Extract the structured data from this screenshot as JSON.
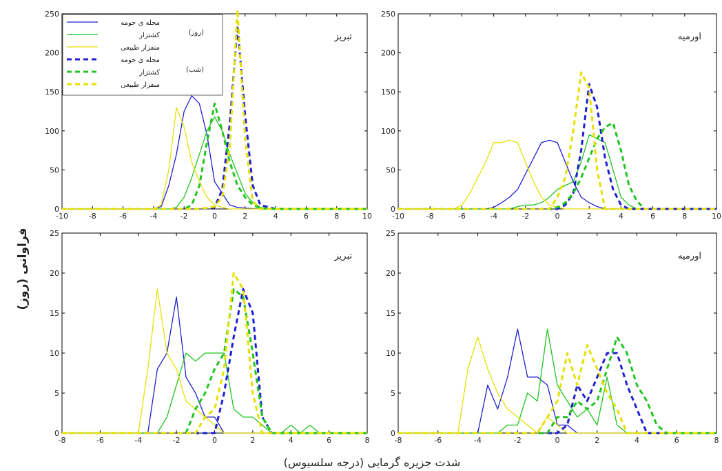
{
  "figure": {
    "ylabel": "فراوانی (روز)",
    "xlabel": "شدت جزیره گرمایی (درجه سلسیوس)"
  },
  "legend": {
    "group_day": "(روز)",
    "group_night": "(شب)",
    "entries": [
      "محله ی حومه",
      "کشتزار",
      "منفزار طبیعی",
      "محله ی حومه",
      "کشتزار",
      "منفزار طبیعی"
    ]
  },
  "colors": {
    "suburb": "#1f1fd2",
    "farm": "#1fc41f",
    "natural": "#e6e000"
  },
  "chart_data": [
    {
      "type": "line",
      "title": "تبریز",
      "xlim": [
        -10,
        10
      ],
      "ylim": [
        0,
        250
      ],
      "xticks": [
        -10,
        -8,
        -6,
        -4,
        -2,
        0,
        2,
        4,
        6,
        8,
        10
      ],
      "yticks": [
        0,
        50,
        100,
        150,
        200,
        250
      ],
      "series": [
        {
          "name": "محله ی حومه (روز)",
          "style": "solid",
          "color": "suburb",
          "x": [
            -10,
            -6,
            -4,
            -3.5,
            -3,
            -2.5,
            -2,
            -1.5,
            -1,
            -0.5,
            0,
            0.5,
            1,
            1.5,
            2,
            3,
            4,
            10
          ],
          "y": [
            0,
            0,
            0,
            3,
            30,
            70,
            125,
            145,
            135,
            95,
            35,
            20,
            5,
            2,
            1,
            0,
            0,
            0
          ]
        },
        {
          "name": "کشتزار (روز)",
          "style": "solid",
          "color": "farm",
          "x": [
            -10,
            -3,
            -2.5,
            -2,
            -1.5,
            -1,
            -0.5,
            0,
            0.5,
            1,
            1.5,
            2,
            2.5,
            3,
            3.5,
            10
          ],
          "y": [
            0,
            0,
            2,
            15,
            40,
            70,
            100,
            118,
            100,
            70,
            45,
            20,
            8,
            2,
            0,
            0
          ]
        },
        {
          "name": "منفزار طبیعی (روز)",
          "style": "solid",
          "color": "natural",
          "x": [
            -10,
            -4,
            -3.5,
            -3,
            -2.5,
            -2,
            -1.5,
            -1,
            -0.5,
            0,
            0.5,
            1,
            10
          ],
          "y": [
            0,
            0,
            5,
            50,
            130,
            105,
            60,
            35,
            15,
            5,
            2,
            0,
            0
          ]
        },
        {
          "name": "محله ی حومه (شب)",
          "style": "dashed",
          "color": "suburb",
          "x": [
            -10,
            -2,
            -1,
            0,
            0.5,
            1,
            1.5,
            2,
            2.5,
            3,
            4,
            10
          ],
          "y": [
            0,
            0,
            0,
            2,
            25,
            110,
            235,
            120,
            30,
            5,
            0,
            0
          ]
        },
        {
          "name": "کشتزار (شب)",
          "style": "dashed",
          "color": "farm",
          "x": [
            -10,
            -2,
            -1.5,
            -1,
            -0.5,
            0,
            0.5,
            1,
            1.5,
            2,
            2.5,
            3,
            4,
            10
          ],
          "y": [
            0,
            0,
            5,
            30,
            85,
            135,
            100,
            60,
            30,
            15,
            5,
            1,
            0,
            0
          ]
        },
        {
          "name": "منفزار طبیعی (شب)",
          "style": "dashed",
          "color": "natural",
          "x": [
            -10,
            -1,
            0,
            0.5,
            1,
            1.5,
            2,
            2.5,
            3,
            10
          ],
          "y": [
            0,
            0,
            3,
            15,
            80,
            255,
            90,
            10,
            0,
            0
          ]
        }
      ]
    },
    {
      "type": "line",
      "title": "اورمیه",
      "xlim": [
        -10,
        10
      ],
      "ylim": [
        0,
        250
      ],
      "xticks": [
        -10,
        -8,
        -6,
        -4,
        -2,
        0,
        2,
        4,
        6,
        8,
        10
      ],
      "yticks": [
        0,
        50,
        100,
        150,
        200,
        250
      ],
      "series": [
        {
          "name": "محله ی حومه (روز)",
          "style": "solid",
          "color": "suburb",
          "x": [
            -10,
            -4.5,
            -4,
            -3.5,
            -3,
            -2.5,
            -2,
            -1.5,
            -1,
            -0.5,
            0,
            0.5,
            1,
            1.5,
            2,
            2.5,
            3,
            10
          ],
          "y": [
            0,
            0,
            2,
            8,
            15,
            25,
            45,
            65,
            85,
            88,
            85,
            60,
            35,
            15,
            8,
            3,
            0,
            0
          ]
        },
        {
          "name": "کشتزار (روز)",
          "style": "solid",
          "color": "farm",
          "x": [
            -10,
            -3,
            -2.5,
            -2,
            -1.5,
            -1,
            -0.5,
            0,
            0.5,
            1,
            1.5,
            2,
            2.5,
            3,
            3.5,
            4,
            4.5,
            5,
            10
          ],
          "y": [
            0,
            0,
            3,
            5,
            5,
            8,
            15,
            25,
            30,
            35,
            60,
            95,
            90,
            85,
            50,
            15,
            5,
            0,
            0
          ]
        },
        {
          "name": "منفزار طبیعی (روز)",
          "style": "solid",
          "color": "natural",
          "x": [
            -10,
            -6.5,
            -6,
            -5.5,
            -5,
            -4.5,
            -4,
            -3.5,
            -3,
            -2.5,
            -2,
            -1.5,
            -1,
            -0.5,
            0,
            0.5,
            1,
            10
          ],
          "y": [
            0,
            0,
            5,
            20,
            40,
            60,
            85,
            85,
            88,
            85,
            60,
            35,
            15,
            5,
            2,
            0,
            0,
            0
          ]
        },
        {
          "name": "محله ی حومه (شب)",
          "style": "dashed",
          "color": "suburb",
          "x": [
            -10,
            0,
            0.5,
            1,
            1.5,
            2,
            2.5,
            3,
            3.5,
            4,
            4.5,
            10
          ],
          "y": [
            0,
            0,
            5,
            20,
            75,
            160,
            130,
            65,
            25,
            5,
            0,
            0
          ]
        },
        {
          "name": "کشتزار (شب)",
          "style": "dashed",
          "color": "farm",
          "x": [
            -10,
            -0.5,
            0,
            0.5,
            1,
            1.5,
            2,
            2.5,
            3,
            3.5,
            4,
            4.5,
            5,
            5.5,
            10
          ],
          "y": [
            0,
            0,
            2,
            8,
            20,
            40,
            65,
            90,
            105,
            110,
            75,
            30,
            10,
            0,
            0
          ]
        },
        {
          "name": "منفزار طبیعی (شب)",
          "style": "dashed",
          "color": "natural",
          "x": [
            -10,
            -0.5,
            0,
            0.5,
            1,
            1.5,
            2,
            2.5,
            3,
            10
          ],
          "y": [
            0,
            0,
            15,
            40,
            100,
            175,
            155,
            50,
            0,
            0
          ]
        }
      ]
    },
    {
      "type": "line",
      "title": "تبریز",
      "xlim": [
        -8,
        8
      ],
      "ylim": [
        0,
        25
      ],
      "xticks": [
        -8,
        -6,
        -4,
        -2,
        0,
        2,
        4,
        6,
        8
      ],
      "yticks": [
        0,
        5,
        10,
        15,
        20,
        25
      ],
      "series": [
        {
          "name": "محله ی حومه (روز)",
          "style": "solid",
          "color": "suburb",
          "x": [
            -8,
            -3.5,
            -3,
            -2.5,
            -2,
            -1.5,
            -1,
            -0.5,
            0,
            0.5,
            1,
            8
          ],
          "y": [
            0,
            0,
            8,
            10,
            17,
            7,
            5,
            2,
            2,
            0,
            0,
            0
          ]
        },
        {
          "name": "کشتزار (روز)",
          "style": "solid",
          "color": "farm",
          "x": [
            -8,
            -3,
            -2.5,
            -2,
            -1.5,
            -1,
            -0.5,
            0,
            0.5,
            1,
            1.5,
            2,
            2.5,
            3,
            3.5,
            4,
            4.5,
            5,
            5.5,
            6,
            8
          ],
          "y": [
            0,
            0,
            2,
            6,
            10,
            9,
            10,
            10,
            10,
            3,
            2,
            2,
            1,
            0,
            0,
            1,
            0,
            1,
            0,
            0,
            0
          ]
        },
        {
          "name": "منفزار طبیعی (روز)",
          "style": "solid",
          "color": "natural",
          "x": [
            -8,
            -4,
            -3.5,
            -3,
            -2.5,
            -2,
            -1.5,
            -1,
            -0.5,
            0,
            0.5,
            8
          ],
          "y": [
            0,
            0,
            8,
            18,
            10,
            8,
            4,
            3,
            2,
            1,
            0,
            0
          ]
        },
        {
          "name": "محله ی حومه (شب)",
          "style": "dashed",
          "color": "suburb",
          "x": [
            -8,
            0,
            0.5,
            1,
            1.5,
            2,
            2.5,
            3,
            8
          ],
          "y": [
            0,
            0,
            5,
            12,
            18,
            15,
            2,
            0,
            0
          ]
        },
        {
          "name": "کشتزار (شب)",
          "style": "dashed",
          "color": "farm",
          "x": [
            -8,
            -1.5,
            -1,
            -0.5,
            0,
            0.5,
            1,
            1.5,
            2,
            2.5,
            3,
            8
          ],
          "y": [
            0,
            0,
            3,
            5,
            8,
            10,
            18,
            17,
            10,
            2,
            0,
            0
          ]
        },
        {
          "name": "منفزار طبیعی (شب)",
          "style": "dashed",
          "color": "natural",
          "x": [
            -8,
            -1,
            -0.5,
            0,
            0.5,
            1,
            1.5,
            2,
            2.5,
            8
          ],
          "y": [
            0,
            0,
            2,
            3,
            8,
            20,
            18,
            5,
            0,
            0
          ]
        }
      ]
    },
    {
      "type": "line",
      "title": "اورمیه",
      "xlim": [
        -8,
        8
      ],
      "ylim": [
        0,
        25
      ],
      "xticks": [
        -8,
        -6,
        -4,
        -2,
        0,
        2,
        4,
        6,
        8
      ],
      "yticks": [
        0,
        5,
        10,
        15,
        20,
        25
      ],
      "series": [
        {
          "name": "محله ی حومه (روز)",
          "style": "solid",
          "color": "suburb",
          "x": [
            -8,
            -4,
            -3.5,
            -3,
            -2.5,
            -2,
            -1.5,
            -1,
            -0.5,
            0,
            0.5,
            1,
            8
          ],
          "y": [
            0,
            0,
            6,
            3,
            7,
            13,
            7,
            7,
            6,
            1,
            1,
            0,
            0
          ]
        },
        {
          "name": "کشتزار (روز)",
          "style": "solid",
          "color": "farm",
          "x": [
            -8,
            -3,
            -2.5,
            -2,
            -1.5,
            -1,
            -0.5,
            0,
            0.5,
            1,
            1.5,
            2,
            2.5,
            3,
            3.5,
            4,
            8
          ],
          "y": [
            0,
            0,
            1,
            1,
            5,
            4,
            13,
            6,
            4,
            2,
            3,
            1,
            7,
            1,
            0,
            0,
            0
          ]
        },
        {
          "name": "منفزار طبیعی (روز)",
          "style": "solid",
          "color": "natural",
          "x": [
            -8,
            -5,
            -4.5,
            -4,
            -3.5,
            -3,
            -2.5,
            -2,
            -1.5,
            -1,
            -0.5,
            0,
            0.5,
            1,
            8
          ],
          "y": [
            0,
            0,
            8,
            12,
            8,
            5,
            3,
            2,
            1,
            0,
            2,
            1,
            0,
            0,
            0
          ]
        },
        {
          "name": "محله ی حومه (شب)",
          "style": "dashed",
          "color": "suburb",
          "x": [
            -8,
            0,
            0.5,
            1,
            1.5,
            2,
            2.5,
            3,
            3.5,
            4,
            4.5,
            8
          ],
          "y": [
            0,
            0,
            1,
            6,
            4,
            7,
            10,
            10,
            6,
            3,
            0,
            0
          ]
        },
        {
          "name": "کشتزار (شب)",
          "style": "dashed",
          "color": "farm",
          "x": [
            -8,
            -0.5,
            0,
            0.5,
            1,
            1.5,
            2,
            2.5,
            3,
            3.5,
            4,
            4.5,
            5,
            5.5,
            8
          ],
          "y": [
            0,
            0,
            2,
            2,
            4,
            3,
            4,
            8,
            12,
            10,
            6,
            4,
            1,
            0,
            0
          ]
        },
        {
          "name": "منفزار طبیعی (شب)",
          "style": "dashed",
          "color": "natural",
          "x": [
            -8,
            -1,
            -0.5,
            0,
            0.5,
            1,
            1.5,
            2,
            2.5,
            3,
            3.5,
            8
          ],
          "y": [
            0,
            0,
            2,
            4,
            10,
            6,
            11,
            8,
            5,
            3,
            0,
            0
          ]
        }
      ]
    }
  ]
}
